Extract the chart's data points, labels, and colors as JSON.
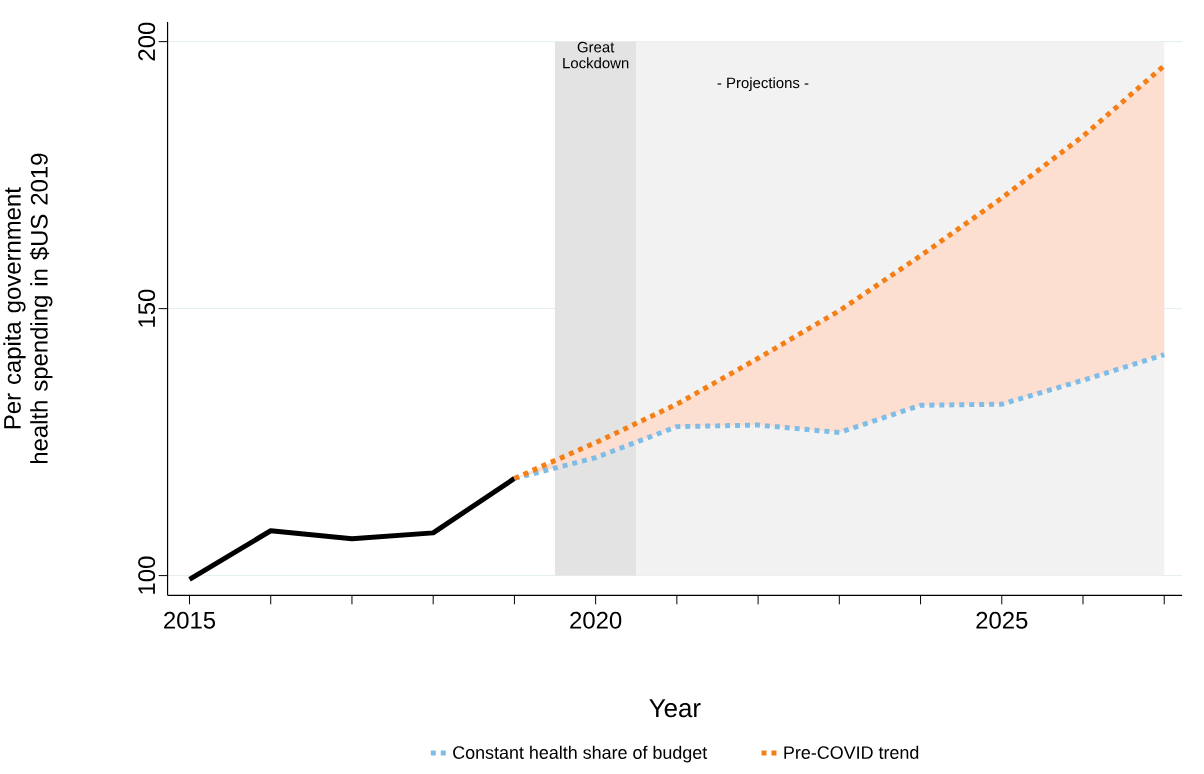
{
  "chart_data": {
    "type": "line",
    "xlabel": "Year",
    "ylabel": "Per capita government health spending in $US 2019",
    "xlim": [
      2014.73,
      2027.22
    ],
    "ylim": [
      96.3,
      203.7
    ],
    "xticks": [
      2015,
      {
        "value": 2016,
        "label": null
      },
      {
        "value": 2017,
        "label": null
      },
      {
        "value": 2018,
        "label": null
      },
      {
        "value": 2019,
        "label": null
      },
      2020,
      {
        "value": 2021,
        "label": null
      },
      {
        "value": 2022,
        "label": null
      },
      {
        "value": 2023,
        "label": null
      },
      {
        "value": 2024,
        "label": null
      },
      2025,
      {
        "value": 2026,
        "label": null
      },
      {
        "value": 2027,
        "label": null
      }
    ],
    "yticks": [
      100,
      150,
      200
    ],
    "grid": "y",
    "legend": "bottom",
    "bands": [
      {
        "axis": "x",
        "from": 2019.5,
        "to": 2020.5,
        "label": "Great Lockdown",
        "color": "#e3e3e3"
      },
      {
        "axis": "x",
        "from": 2020.5,
        "to": 2027,
        "label": "- Projections -",
        "color": "#f2f2f2"
      }
    ],
    "series": [
      {
        "color": "#000000",
        "line_style": "solid",
        "x": [
          2015,
          2016,
          2017,
          2018,
          2019
        ],
        "values": [
          99.3,
          108.4,
          106.9,
          108.0,
          118.2
        ]
      },
      {
        "name": "Constant health share of budget",
        "color": "#7fbde6",
        "line_style": "dotted",
        "x": [
          2019,
          2020,
          2021,
          2022,
          2023,
          2024,
          2025,
          2026,
          2027
        ],
        "values": [
          118.2,
          122.1,
          127.9,
          128.2,
          126.8,
          131.9,
          132.1,
          136.6,
          141.4
        ]
      },
      {
        "name": "Pre-COVID trend",
        "color": "#f57f17",
        "line_style": "dotted",
        "x": [
          2019,
          2020,
          2021,
          2022,
          2023,
          2024,
          2025,
          2026,
          2027
        ],
        "values": [
          118.2,
          124.9,
          132.1,
          140.7,
          149.6,
          159.9,
          170.7,
          182.3,
          195.5
        ],
        "lower": [
          118.2,
          122.1,
          127.9,
          128.2,
          126.8,
          131.9,
          132.1,
          136.6,
          141.4
        ],
        "upper": [
          118.2,
          124.9,
          132.1,
          140.7,
          149.6,
          159.9,
          170.7,
          182.3,
          195.5
        ]
      }
    ]
  }
}
